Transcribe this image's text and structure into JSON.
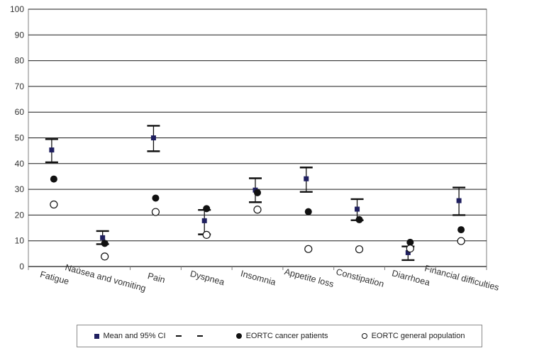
{
  "chart_data": {
    "type": "scatter",
    "title": "",
    "xlabel": "",
    "ylabel": "",
    "ylim": [
      0,
      100
    ],
    "yticks": [
      0,
      10,
      20,
      30,
      40,
      50,
      60,
      70,
      80,
      90,
      100
    ],
    "grid": true,
    "legend_placement": "bottom",
    "categories": [
      "Fatigue",
      "Nausea and vomiting",
      "Pain",
      "Dyspnea",
      "Insomnia",
      "Appetite loss",
      "Constipation",
      "Diarrhoea",
      "Financial difficulties"
    ],
    "series": [
      {
        "name": "Mean and 95% CI",
        "marker": "square",
        "color": "#1f1f5f",
        "values": [
          45.3,
          11.2,
          50.0,
          17.8,
          29.7,
          34.1,
          22.3,
          5.4,
          25.6
        ],
        "ci_lower": [
          40.5,
          8.7,
          44.8,
          12.5,
          25.0,
          29.0,
          18.0,
          2.5,
          20.0
        ],
        "ci_upper": [
          49.5,
          13.8,
          54.7,
          22.0,
          34.3,
          38.5,
          26.2,
          7.8,
          30.7
        ]
      },
      {
        "name": "EORTC cancer patients",
        "marker": "filled-circle",
        "color": "#111111",
        "values": [
          34.0,
          9.0,
          26.6,
          22.5,
          28.7,
          21.3,
          18.2,
          9.4,
          14.3
        ]
      },
      {
        "name": "EORTC general population",
        "marker": "open-circle",
        "color": "#111111",
        "values": [
          24.1,
          3.9,
          21.2,
          12.3,
          22.1,
          6.8,
          6.7,
          7.0,
          9.9
        ]
      }
    ]
  },
  "legend": {
    "mean_label": "Mean and 95% CI",
    "cancer_label": "EORTC cancer patients",
    "general_label": "EORTC general population"
  }
}
